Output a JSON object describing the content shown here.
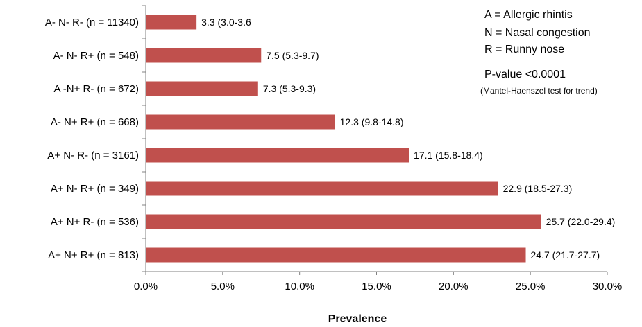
{
  "chart_data": {
    "type": "bar",
    "orientation": "horizontal",
    "categories": [
      "A- N- R- (n = 11340)",
      "A- N- R+ (n = 548)",
      "A -N+ R- (n = 672)",
      "A- N+ R+ (n = 668)",
      "A+ N- R- (n = 3161)",
      "A+ N- R+ (n = 349)",
      "A+ N+ R- (n = 536)",
      "A+ N+ R+ (n = 813)"
    ],
    "values": [
      3.3,
      7.5,
      7.3,
      12.3,
      17.1,
      22.9,
      25.7,
      24.7
    ],
    "data_labels": [
      "3.3 (3.0-3.6",
      "7.5 (5.3-9.7)",
      "7.3 (5.3-9.3)",
      "12.3 (9.8-14.8)",
      "17.1 (15.8-18.4)",
      "22.9 (18.5-27.3)",
      "25.7 (22.0-29.4)",
      "24.7 (21.7-27.7)"
    ],
    "xlabel": "Prevalence",
    "xlim": [
      0,
      30
    ],
    "xticks": [
      0,
      5,
      10,
      15,
      20,
      25,
      30
    ],
    "xtick_labels": [
      "0.0%",
      "5.0%",
      "10.0%",
      "15.0%",
      "20.0%",
      "25.0%",
      "30.0%"
    ],
    "grid": false,
    "bar_color": "#c0504d",
    "annotations": {
      "legend_lines": [
        "A = Allergic rhintis",
        "N = Nasal congestion",
        "R = Runny nose"
      ],
      "pvalue": "P-value <0.0001",
      "test": "(Mantel-Haenszel test for trend)"
    }
  }
}
